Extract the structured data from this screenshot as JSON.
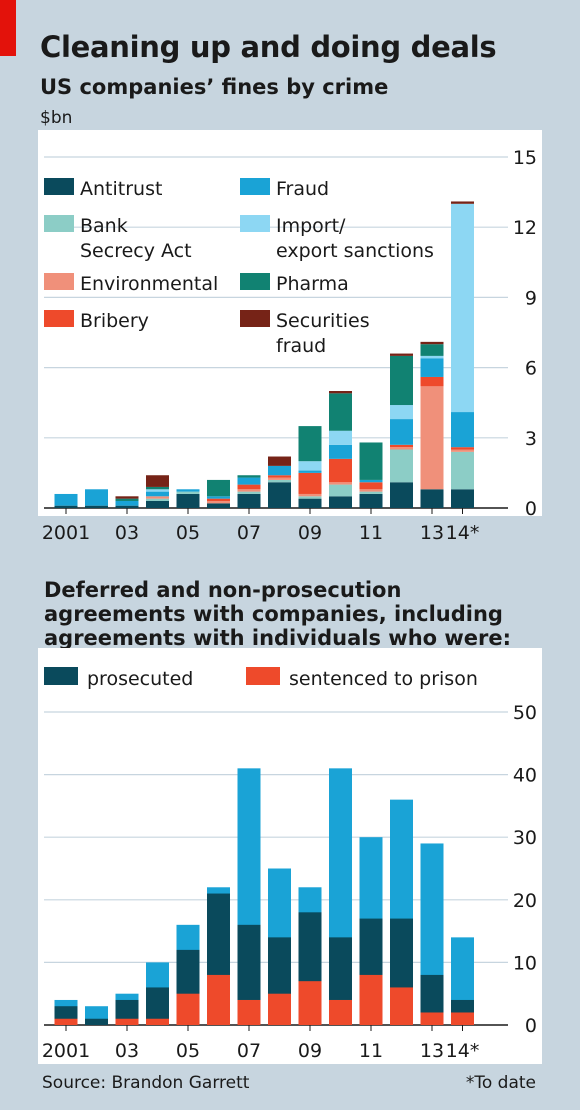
{
  "title": "Cleaning up and doing deals",
  "source": "Source: Brandon Garrett",
  "footnote": "*To date",
  "colors": {
    "background": "#c7d5df",
    "accent": "#e3120b",
    "Antitrust": "#0a4a5c",
    "Bank Secrecy Act": "#8ccdc6",
    "Environmental": "#f0907a",
    "Bribery": "#ee4a2b",
    "Fraud": "#1aa3d6",
    "Import/ export sanctions": "#8dd7f3",
    "Pharma": "#118272",
    "Securities fraud": "#762317",
    "prosecuted": "#0a4a5c",
    "sentenced to prison": "#ee4a2b",
    "total": "#1aa3d6"
  },
  "chart_data": [
    {
      "type": "bar",
      "stacked": true,
      "title": "US companies’ fines by crime",
      "ylabel": "$bn",
      "ylim": [
        0,
        15
      ],
      "y_ticks": [
        "0",
        "3",
        "6",
        "9",
        "12",
        "15"
      ],
      "y_axis_side": "right",
      "grid": true,
      "legend_position": "top-left",
      "categories": [
        "2001",
        "02",
        "03",
        "04",
        "05",
        "06",
        "07",
        "08",
        "09",
        "10",
        "11",
        "12",
        "13",
        "14*"
      ],
      "x_tick_labels": [
        "2001",
        "03",
        "05",
        "07",
        "09",
        "11",
        "13",
        "14*"
      ],
      "series": [
        {
          "name": "Antitrust",
          "values": [
            0.1,
            0.1,
            0.1,
            0.3,
            0.6,
            0.2,
            0.6,
            1.1,
            0.4,
            0.5,
            0.6,
            1.1,
            0.8,
            0.8
          ]
        },
        {
          "name": "Bank Secrecy Act",
          "values": [
            0.0,
            0.0,
            0.0,
            0.1,
            0.1,
            0.0,
            0.1,
            0.1,
            0.1,
            0.5,
            0.1,
            1.4,
            0.0,
            1.6
          ]
        },
        {
          "name": "Environmental",
          "values": [
            0.0,
            0.0,
            0.0,
            0.1,
            0.0,
            0.1,
            0.1,
            0.1,
            0.1,
            0.1,
            0.1,
            0.1,
            4.4,
            0.1
          ]
        },
        {
          "name": "Bribery",
          "values": [
            0.0,
            0.0,
            0.0,
            0.0,
            0.0,
            0.1,
            0.2,
            0.1,
            0.9,
            1.0,
            0.3,
            0.1,
            0.4,
            0.1
          ]
        },
        {
          "name": "Fraud",
          "values": [
            0.5,
            0.7,
            0.2,
            0.2,
            0.1,
            0.1,
            0.3,
            0.4,
            0.1,
            0.6,
            0.1,
            1.1,
            0.8,
            1.5
          ]
        },
        {
          "name": "Import/ export sanctions",
          "values": [
            0.0,
            0.0,
            0.0,
            0.1,
            0.0,
            0.0,
            0.0,
            0.0,
            0.4,
            0.6,
            0.0,
            0.6,
            0.1,
            8.9
          ]
        },
        {
          "name": "Pharma",
          "values": [
            0.0,
            0.0,
            0.1,
            0.1,
            0.0,
            0.7,
            0.1,
            0.0,
            1.5,
            1.6,
            1.6,
            2.1,
            0.5,
            0.0
          ]
        },
        {
          "name": "Securities fraud",
          "values": [
            0.0,
            0.0,
            0.1,
            0.5,
            0.0,
            0.0,
            0.0,
            0.4,
            0.0,
            0.1,
            0.0,
            0.1,
            0.1,
            0.1
          ]
        }
      ],
      "legend_labels": [
        [
          "Antitrust"
        ],
        [
          "Bank",
          "Secrecy Act"
        ],
        [
          "Environmental"
        ],
        [
          "Bribery"
        ],
        [
          "Fraud"
        ],
        [
          "Import/",
          "export sanctions"
        ],
        [
          "Pharma"
        ],
        [
          "Securities",
          "fraud"
        ]
      ]
    },
    {
      "type": "bar",
      "title": "Deferred and non-prosecution agreements with companies, including agreements with individuals who were:",
      "ylim": [
        0,
        50
      ],
      "y_ticks": [
        "0",
        "10",
        "20",
        "30",
        "40",
        "50"
      ],
      "y_axis_side": "right",
      "grid": true,
      "legend_position": "top-left",
      "categories": [
        "2001",
        "02",
        "03",
        "04",
        "05",
        "06",
        "07",
        "08",
        "09",
        "10",
        "11",
        "12",
        "13",
        "14*"
      ],
      "x_tick_labels": [
        "2001",
        "03",
        "05",
        "07",
        "09",
        "11",
        "13",
        "14*"
      ],
      "total": [
        4,
        3,
        5,
        10,
        16,
        22,
        41,
        25,
        22,
        41,
        30,
        36,
        29,
        14
      ],
      "series": [
        {
          "name": "prosecuted",
          "values": [
            3,
            1,
            4,
            6,
            12,
            21,
            16,
            14,
            18,
            14,
            17,
            17,
            8,
            4
          ]
        },
        {
          "name": "sentenced to prison",
          "values": [
            1,
            0,
            1,
            1,
            5,
            8,
            4,
            5,
            7,
            4,
            8,
            6,
            2,
            2
          ]
        }
      ]
    }
  ]
}
